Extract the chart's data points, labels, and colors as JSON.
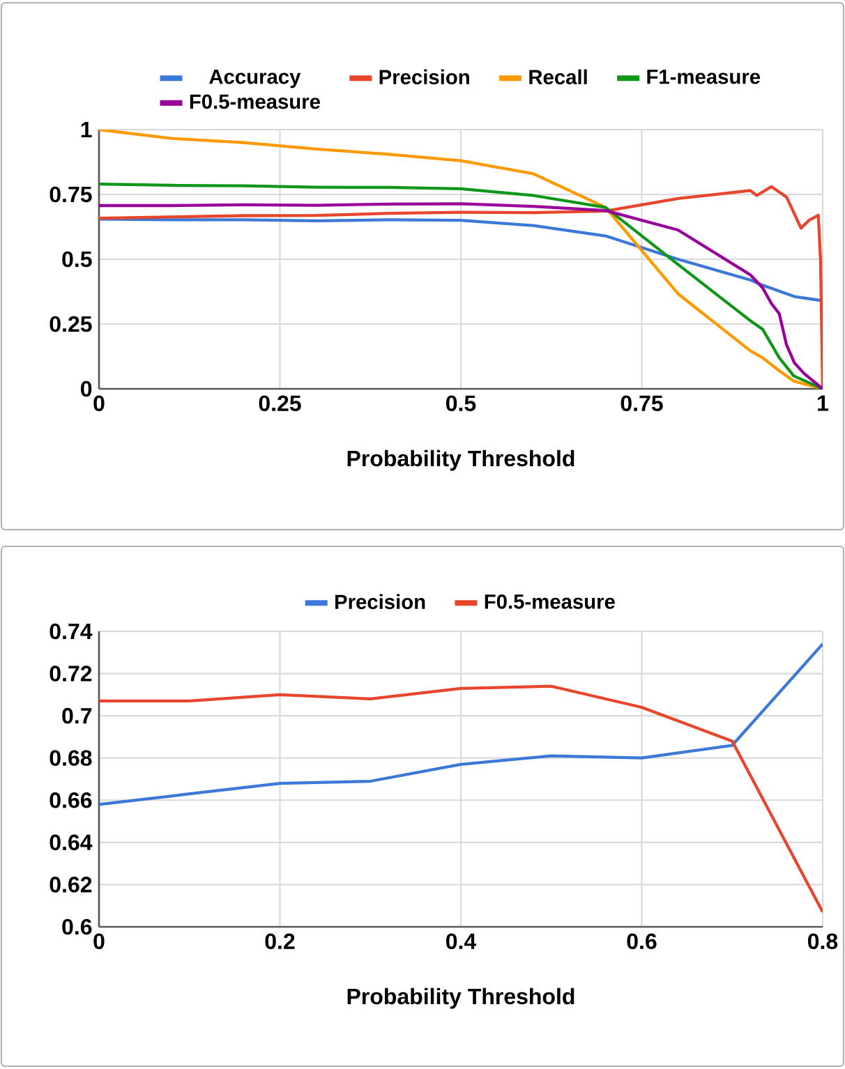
{
  "chart_data": [
    {
      "type": "line",
      "xlabel": "Probability Threshold",
      "xlim": [
        0,
        1
      ],
      "ylim": [
        0,
        1
      ],
      "xticks": [
        0,
        0.25,
        0.5,
        0.75,
        1
      ],
      "yticks": [
        0,
        0.25,
        0.5,
        0.75,
        1
      ],
      "grid": true,
      "legend": "top",
      "series": [
        {
          "name": "Accuracy",
          "color": "#3c78d8",
          "x": [
            0,
            0.1,
            0.2,
            0.3,
            0.4,
            0.5,
            0.6,
            0.7,
            0.8,
            0.9,
            0.917,
            0.961,
            1
          ],
          "values": [
            0.655,
            0.652,
            0.652,
            0.648,
            0.652,
            0.65,
            0.63,
            0.59,
            0.5,
            0.42,
            0.4,
            0.356,
            0.34
          ]
        },
        {
          "name": "Precision",
          "color": "#e8452c",
          "x": [
            0,
            0.1,
            0.2,
            0.3,
            0.4,
            0.5,
            0.6,
            0.7,
            0.8,
            0.9,
            0.909,
            0.929,
            0.95,
            0.97,
            0.981,
            0.994,
            0.997,
            1
          ],
          "values": [
            0.658,
            0.663,
            0.668,
            0.669,
            0.677,
            0.681,
            0.68,
            0.686,
            0.734,
            0.765,
            0.746,
            0.78,
            0.74,
            0.62,
            0.65,
            0.67,
            0.5,
            0
          ]
        },
        {
          "name": "Recall",
          "color": "#ff9900",
          "x": [
            0,
            0.1,
            0.2,
            0.3,
            0.4,
            0.5,
            0.6,
            0.7,
            0.8,
            0.9,
            0.917,
            0.94,
            0.96,
            1
          ],
          "values": [
            1,
            0.966,
            0.95,
            0.925,
            0.905,
            0.88,
            0.83,
            0.7,
            0.367,
            0.147,
            0.12,
            0.07,
            0.03,
            0
          ]
        },
        {
          "name": "F1-measure",
          "color": "#109618",
          "x": [
            0,
            0.1,
            0.2,
            0.3,
            0.4,
            0.5,
            0.6,
            0.7,
            0.8,
            0.9,
            0.917,
            0.94,
            0.96,
            1
          ],
          "values": [
            0.79,
            0.785,
            0.783,
            0.778,
            0.777,
            0.772,
            0.746,
            0.7,
            0.48,
            0.263,
            0.23,
            0.12,
            0.05,
            0
          ]
        },
        {
          "name": "F0.5-measure",
          "color": "#990099",
          "x": [
            0,
            0.1,
            0.2,
            0.3,
            0.4,
            0.5,
            0.6,
            0.7,
            0.8,
            0.9,
            0.917,
            0.929,
            0.94,
            0.95,
            0.961,
            0.974,
            1
          ],
          "values": [
            0.707,
            0.707,
            0.71,
            0.708,
            0.713,
            0.714,
            0.704,
            0.688,
            0.613,
            0.44,
            0.39,
            0.33,
            0.29,
            0.17,
            0.1,
            0.06,
            0
          ]
        }
      ]
    },
    {
      "type": "line",
      "xlabel": "Probability Threshold",
      "xlim": [
        0,
        0.8
      ],
      "ylim": [
        0.6,
        0.74
      ],
      "xticks": [
        0,
        0.2,
        0.4,
        0.6,
        0.8
      ],
      "yticks": [
        0.6,
        0.62,
        0.64,
        0.66,
        0.68,
        0.7,
        0.72,
        0.74
      ],
      "grid": true,
      "legend": "top",
      "series": [
        {
          "name": "Precision",
          "color": "#3c78d8",
          "x": [
            0,
            0.1,
            0.2,
            0.3,
            0.4,
            0.5,
            0.6,
            0.7,
            0.8
          ],
          "values": [
            0.658,
            0.663,
            0.668,
            0.669,
            0.677,
            0.681,
            0.68,
            0.686,
            0.734
          ]
        },
        {
          "name": "F0.5-measure",
          "color": "#e8452c",
          "x": [
            0,
            0.1,
            0.2,
            0.3,
            0.4,
            0.5,
            0.6,
            0.7,
            0.8
          ],
          "values": [
            0.707,
            0.707,
            0.71,
            0.708,
            0.713,
            0.714,
            0.704,
            0.688,
            0.607
          ]
        }
      ]
    }
  ]
}
